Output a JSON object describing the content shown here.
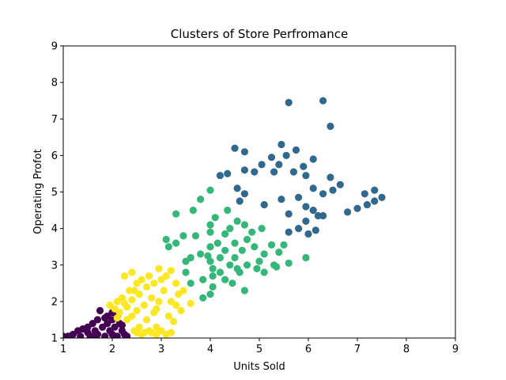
{
  "chart_data": {
    "type": "scatter",
    "title": "Clusters of Store Perfromance",
    "xlabel": "Units Sold",
    "ylabel": "Operating Profot",
    "xlim": [
      1,
      9
    ],
    "ylim": [
      1,
      9
    ],
    "xticks": [
      1,
      2,
      3,
      4,
      5,
      6,
      7,
      8,
      9
    ],
    "yticks": [
      1,
      2,
      3,
      4,
      5,
      6,
      7,
      8,
      9
    ],
    "grid": false,
    "colors": {
      "cluster_purple": "#440154",
      "cluster_blue": "#31688e",
      "cluster_green": "#35b779",
      "cluster_yellow": "#fde725"
    },
    "series": [
      {
        "name": "cluster_purple",
        "color": "#440154",
        "points": [
          [
            1.0,
            1.05
          ],
          [
            1.1,
            1.05
          ],
          [
            1.2,
            1.1
          ],
          [
            1.3,
            1.2
          ],
          [
            1.35,
            1.05
          ],
          [
            1.5,
            1.3
          ],
          [
            1.5,
            1.15
          ],
          [
            1.55,
            1.05
          ],
          [
            1.6,
            1.4
          ],
          [
            1.65,
            1.2
          ],
          [
            1.7,
            1.5
          ],
          [
            1.7,
            1.1
          ],
          [
            1.75,
            1.75
          ],
          [
            1.8,
            1.3
          ],
          [
            1.85,
            1.05
          ],
          [
            1.9,
            1.6
          ],
          [
            1.9,
            1.4
          ],
          [
            1.95,
            1.2
          ],
          [
            2.0,
            1.7
          ],
          [
            2.0,
            1.5
          ],
          [
            2.0,
            1.1
          ],
          [
            2.05,
            1.3
          ],
          [
            2.1,
            1.6
          ],
          [
            2.1,
            1.05
          ],
          [
            2.15,
            1.4
          ],
          [
            2.2,
            1.2
          ],
          [
            2.25,
            1.1
          ],
          [
            2.3,
            1.05
          ],
          [
            1.4,
            1.25
          ],
          [
            1.85,
            1.55
          ],
          [
            1.6,
            1.05
          ],
          [
            2.2,
            1.35
          ]
        ]
      },
      {
        "name": "cluster_yellow",
        "color": "#fde725",
        "points": [
          [
            1.95,
            1.9
          ],
          [
            2.05,
            1.8
          ],
          [
            2.1,
            2.0
          ],
          [
            2.1,
            1.55
          ],
          [
            2.15,
            1.7
          ],
          [
            2.2,
            2.1
          ],
          [
            2.25,
            2.7
          ],
          [
            2.3,
            1.85
          ],
          [
            2.3,
            1.5
          ],
          [
            2.35,
            2.3
          ],
          [
            2.4,
            2.8
          ],
          [
            2.4,
            2.05
          ],
          [
            2.4,
            1.6
          ],
          [
            2.45,
            1.2
          ],
          [
            2.5,
            2.5
          ],
          [
            2.5,
            1.75
          ],
          [
            2.55,
            2.2
          ],
          [
            2.55,
            1.3
          ],
          [
            2.6,
            2.6
          ],
          [
            2.6,
            1.1
          ],
          [
            2.65,
            1.9
          ],
          [
            2.7,
            2.4
          ],
          [
            2.7,
            1.5
          ],
          [
            2.75,
            2.7
          ],
          [
            2.75,
            1.2
          ],
          [
            2.8,
            2.1
          ],
          [
            2.8,
            1.15
          ],
          [
            2.85,
            2.5
          ],
          [
            2.85,
            1.7
          ],
          [
            2.9,
            1.3
          ],
          [
            2.95,
            2.9
          ],
          [
            2.95,
            2.0
          ],
          [
            3.0,
            1.2
          ],
          [
            3.05,
            2.3
          ],
          [
            3.1,
            2.7
          ],
          [
            3.1,
            1.1
          ],
          [
            3.15,
            1.6
          ],
          [
            3.2,
            2.85
          ],
          [
            3.2,
            2.0
          ],
          [
            3.2,
            1.15
          ],
          [
            3.25,
            1.45
          ],
          [
            3.3,
            2.5
          ],
          [
            3.3,
            1.9
          ],
          [
            3.35,
            2.2
          ],
          [
            3.4,
            1.75
          ],
          [
            3.45,
            2.3
          ],
          [
            3.6,
            1.95
          ],
          [
            2.5,
            1.15
          ],
          [
            2.65,
            1.15
          ],
          [
            2.9,
            1.1
          ],
          [
            3.0,
            2.6
          ],
          [
            2.25,
            1.95
          ],
          [
            2.45,
            2.3
          ],
          [
            2.9,
            1.8
          ]
        ]
      },
      {
        "name": "cluster_green",
        "color": "#35b779",
        "points": [
          [
            3.1,
            3.7
          ],
          [
            3.15,
            3.5
          ],
          [
            3.3,
            4.4
          ],
          [
            3.3,
            3.6
          ],
          [
            3.45,
            3.8
          ],
          [
            3.5,
            3.1
          ],
          [
            3.5,
            2.8
          ],
          [
            3.6,
            2.5
          ],
          [
            3.65,
            4.5
          ],
          [
            3.7,
            3.8
          ],
          [
            3.8,
            4.8
          ],
          [
            3.8,
            3.3
          ],
          [
            3.85,
            2.6
          ],
          [
            3.85,
            2.1
          ],
          [
            4.0,
            5.05
          ],
          [
            4.0,
            4.1
          ],
          [
            4.0,
            3.9
          ],
          [
            4.0,
            3.5
          ],
          [
            4.0,
            3.1
          ],
          [
            4.05,
            2.9
          ],
          [
            4.05,
            2.7
          ],
          [
            4.05,
            2.4
          ],
          [
            4.1,
            4.3
          ],
          [
            4.15,
            3.6
          ],
          [
            4.2,
            3.2
          ],
          [
            4.2,
            2.8
          ],
          [
            4.3,
            3.4
          ],
          [
            4.3,
            2.6
          ],
          [
            4.35,
            4.5
          ],
          [
            4.4,
            4.0
          ],
          [
            4.4,
            3.0
          ],
          [
            4.45,
            2.5
          ],
          [
            4.5,
            3.6
          ],
          [
            4.5,
            3.2
          ],
          [
            4.55,
            4.2
          ],
          [
            4.6,
            2.8
          ],
          [
            4.65,
            3.4
          ],
          [
            4.7,
            2.3
          ],
          [
            4.7,
            4.1
          ],
          [
            4.75,
            3.0
          ],
          [
            4.85,
            3.9
          ],
          [
            4.9,
            3.5
          ],
          [
            4.95,
            2.9
          ],
          [
            5.05,
            4.0
          ],
          [
            5.1,
            3.3
          ],
          [
            5.1,
            2.8
          ],
          [
            5.25,
            3.55
          ],
          [
            5.3,
            3.0
          ],
          [
            5.4,
            3.35
          ],
          [
            5.5,
            3.55
          ],
          [
            5.6,
            3.05
          ],
          [
            5.95,
            3.2
          ],
          [
            4.0,
            2.2
          ],
          [
            4.3,
            3.85
          ],
          [
            4.55,
            2.9
          ],
          [
            3.6,
            3.2
          ],
          [
            3.95,
            3.25
          ],
          [
            4.75,
            3.7
          ],
          [
            5.35,
            2.95
          ],
          [
            5.0,
            3.1
          ]
        ]
      },
      {
        "name": "cluster_blue",
        "color": "#31688e",
        "points": [
          [
            4.2,
            5.45
          ],
          [
            4.35,
            5.5
          ],
          [
            4.5,
            6.2
          ],
          [
            4.55,
            5.1
          ],
          [
            4.6,
            4.75
          ],
          [
            4.7,
            5.6
          ],
          [
            4.7,
            4.95
          ],
          [
            4.7,
            6.1
          ],
          [
            4.9,
            5.55
          ],
          [
            5.05,
            5.75
          ],
          [
            5.1,
            4.65
          ],
          [
            5.25,
            5.95
          ],
          [
            5.3,
            5.55
          ],
          [
            5.4,
            5.75
          ],
          [
            5.45,
            4.8
          ],
          [
            5.55,
            6.0
          ],
          [
            5.6,
            7.45
          ],
          [
            5.6,
            4.4
          ],
          [
            5.6,
            3.9
          ],
          [
            5.7,
            5.55
          ],
          [
            5.75,
            6.15
          ],
          [
            5.8,
            4.85
          ],
          [
            5.8,
            4.0
          ],
          [
            5.9,
            5.7
          ],
          [
            5.95,
            5.45
          ],
          [
            5.95,
            4.6
          ],
          [
            5.95,
            4.2
          ],
          [
            6.0,
            3.85
          ],
          [
            6.1,
            5.9
          ],
          [
            6.1,
            5.1
          ],
          [
            6.1,
            4.5
          ],
          [
            6.15,
            3.95
          ],
          [
            6.2,
            4.35
          ],
          [
            6.3,
            7.5
          ],
          [
            6.3,
            4.95
          ],
          [
            6.3,
            4.35
          ],
          [
            6.45,
            6.8
          ],
          [
            6.45,
            5.4
          ],
          [
            6.5,
            5.05
          ],
          [
            6.65,
            5.2
          ],
          [
            6.8,
            4.45
          ],
          [
            7.0,
            4.55
          ],
          [
            7.15,
            4.95
          ],
          [
            7.2,
            4.65
          ],
          [
            7.35,
            5.05
          ],
          [
            7.35,
            4.75
          ],
          [
            7.5,
            4.85
          ],
          [
            5.45,
            6.3
          ]
        ]
      }
    ]
  }
}
